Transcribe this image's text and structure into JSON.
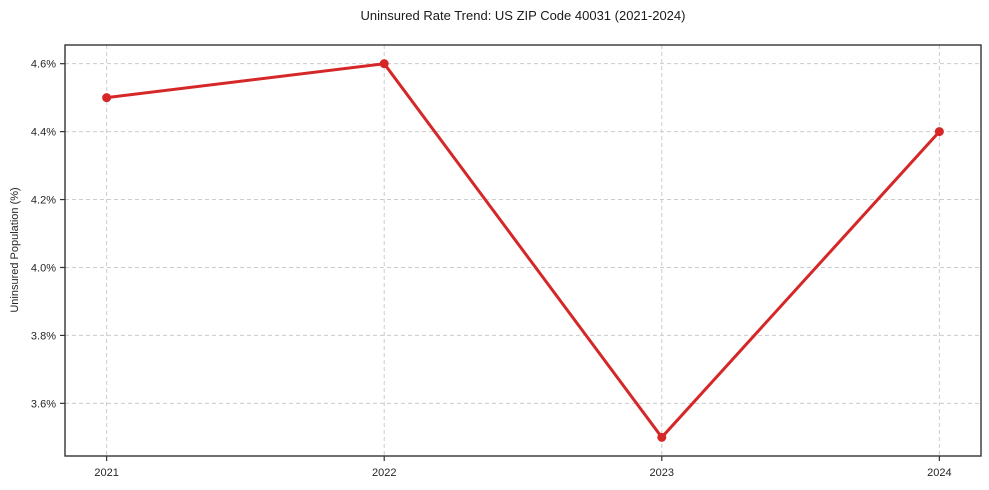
{
  "chart_data": {
    "type": "line",
    "title": "Uninsured Rate Trend: US ZIP Code 40031 (2021-2024)",
    "xlabel": "",
    "ylabel": "Uninsured Population (%)",
    "x": [
      2021,
      2022,
      2023,
      2024
    ],
    "x_tick_labels": [
      "2021",
      "2022",
      "2023",
      "2024"
    ],
    "values": [
      4.5,
      4.6,
      3.5,
      4.4
    ],
    "y_ticks": [
      3.6,
      3.8,
      4.0,
      4.2,
      4.4,
      4.6
    ],
    "y_tick_labels": [
      "3.6%",
      "3.8%",
      "4.0%",
      "4.2%",
      "4.4%",
      "4.6%"
    ],
    "ylim": [
      3.445,
      4.655
    ],
    "xlim": [
      2020.85,
      2024.15
    ],
    "grid": true,
    "grid_style": "dashed",
    "legend": "none",
    "marker": "circle",
    "colors": {
      "line": "#d62728",
      "marker": "#d62728",
      "grid": "#cccccc",
      "spine": "#333333",
      "text": "#262626",
      "background": "#ffffff"
    }
  }
}
